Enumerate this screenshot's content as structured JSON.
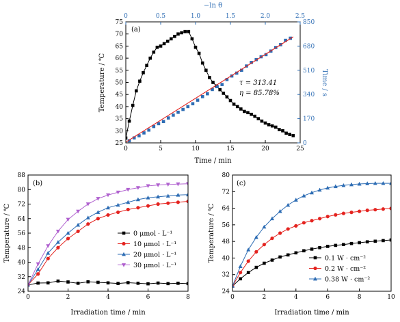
{
  "colors": {
    "black": "#000000",
    "red": "#e4231f",
    "blue": "#2e6db4",
    "purple": "#b061cf",
    "fit_line": "#e4231f",
    "right_axis": "#2e6db4"
  },
  "chart_data": [
    {
      "panel_label": "(a)",
      "type": "line",
      "xlabel": "Time / min",
      "ylabel": "Temperature / ℃",
      "x2label": "−ln θ",
      "y2label": "Time / s",
      "xlim": [
        0,
        25
      ],
      "ylim": [
        25,
        75
      ],
      "x2lim": [
        0,
        2.5
      ],
      "y2lim": [
        0,
        850
      ],
      "x_ticks": [
        "0",
        "5",
        "10",
        "15",
        "20",
        "25"
      ],
      "y_ticks": [
        "25",
        "30",
        "35",
        "40",
        "45",
        "50",
        "55",
        "60",
        "65",
        "70",
        "75"
      ],
      "x2_ticks": [
        "0",
        "0.5",
        "1.0",
        "1.5",
        "2.0",
        "2.5"
      ],
      "y2_ticks": [
        "0",
        "170",
        "340",
        "510",
        "680",
        "850"
      ],
      "annotations": [
        "τ = 313.41",
        "η = 85.78%"
      ],
      "series": [
        {
          "axis": "left-bottom",
          "marker": "square",
          "color": "#000000",
          "x": [
            0,
            0.5,
            1,
            1.5,
            2,
            2.5,
            3,
            3.5,
            4,
            4.5,
            5,
            5.5,
            6,
            6.5,
            7,
            7.5,
            8,
            8.5,
            9,
            9.5,
            10,
            10.5,
            11,
            11.5,
            12,
            12.5,
            13,
            13.5,
            14,
            14.5,
            15,
            15.5,
            16,
            16.5,
            17,
            17.5,
            18,
            18.5,
            19,
            19.5,
            20,
            20.5,
            21,
            21.5,
            22,
            22.5,
            23,
            23.5,
            24
          ],
          "y": [
            27,
            34,
            40.5,
            46.5,
            50.5,
            54,
            57,
            60,
            62.5,
            64.5,
            65,
            66,
            67,
            68,
            69,
            70,
            70.5,
            71,
            71,
            68,
            64.5,
            62,
            58,
            55,
            52,
            50,
            48.5,
            47,
            45.5,
            44,
            42.5,
            41,
            40,
            39,
            38,
            37.5,
            36.8,
            36,
            35,
            34,
            33.2,
            32.5,
            32,
            31.5,
            30.5,
            30,
            29,
            28.5,
            28
          ]
        },
        {
          "axis": "right-top",
          "marker": "square",
          "color": "#2e6db4",
          "x": [
            0.05,
            0.12,
            0.19,
            0.26,
            0.33,
            0.4,
            0.47,
            0.54,
            0.61,
            0.68,
            0.75,
            0.82,
            0.89,
            0.96,
            1.03,
            1.1,
            1.17,
            1.24,
            1.31,
            1.38,
            1.45,
            1.52,
            1.59,
            1.66,
            1.73,
            1.8,
            1.87,
            1.94,
            2.01,
            2.08,
            2.15,
            2.22,
            2.29,
            2.36
          ],
          "y": [
            15,
            35,
            50,
            70,
            90,
            115,
            135,
            150,
            175,
            195,
            215,
            235,
            255,
            275,
            300,
            325,
            345,
            375,
            395,
            410,
            445,
            470,
            490,
            510,
            540,
            565,
            585,
            605,
            620,
            645,
            670,
            690,
            720,
            735
          ]
        },
        {
          "axis": "right-top",
          "marker": "none",
          "color": "#e4231f",
          "x": [
            0,
            2.4
          ],
          "y": [
            5,
            745
          ]
        }
      ]
    },
    {
      "panel_label": "(b)",
      "type": "line",
      "xlabel": "Irradiation time / min",
      "ylabel": "Temperature / ℃",
      "xlim": [
        0,
        8
      ],
      "ylim": [
        24,
        88
      ],
      "x_ticks": [
        "0",
        "2",
        "4",
        "6",
        "8"
      ],
      "y_ticks": [
        "24",
        "32",
        "40",
        "48",
        "56",
        "64",
        "72",
        "80",
        "88"
      ],
      "x": [
        0,
        0.5,
        1,
        1.5,
        2,
        2.5,
        3,
        3.5,
        4,
        4.5,
        5,
        5.5,
        6,
        6.5,
        7,
        7.5,
        8
      ],
      "series": [
        {
          "name": "0 μmol · L⁻¹",
          "marker": "square",
          "color": "#000000",
          "values": [
            27.5,
            28.5,
            28.6,
            29.6,
            29.1,
            28.4,
            29.2,
            28.9,
            28.6,
            28.3,
            28.7,
            28.4,
            28.1,
            28.5,
            28.2,
            28.4,
            28.2
          ]
        },
        {
          "name": "10 μmol · L⁻¹",
          "marker": "circle",
          "color": "#e4231f",
          "values": [
            27.5,
            33.5,
            42,
            48,
            53,
            57,
            61,
            64,
            66,
            67.5,
            69,
            70,
            71,
            72,
            72.5,
            73,
            73.5
          ]
        },
        {
          "name": "20 μmol · L⁻¹",
          "marker": "triangle-up",
          "color": "#2e6db4",
          "values": [
            27.5,
            36,
            45,
            51,
            56,
            60.5,
            64.5,
            67.5,
            70,
            71.5,
            73,
            74.5,
            75.5,
            76,
            76.5,
            77,
            77.2
          ]
        },
        {
          "name": "30 μmol · L⁻¹",
          "marker": "triangle-down",
          "color": "#b061cf",
          "values": [
            27.5,
            39,
            49,
            57,
            63.5,
            68,
            72,
            75,
            77,
            78.5,
            80,
            81,
            82,
            82.5,
            82.8,
            83,
            83.2
          ]
        }
      ]
    },
    {
      "panel_label": "(c)",
      "type": "line",
      "xlabel": "Irradiation time / min",
      "ylabel": "Temperature / ℃",
      "xlim": [
        0,
        10
      ],
      "ylim": [
        24,
        80
      ],
      "x_ticks": [
        "0",
        "2",
        "4",
        "6",
        "8",
        "10"
      ],
      "y_ticks": [
        "24",
        "32",
        "40",
        "48",
        "56",
        "64",
        "72",
        "80"
      ],
      "x": [
        0,
        0.5,
        1,
        1.5,
        2,
        2.5,
        3,
        3.5,
        4,
        4.5,
        5,
        5.5,
        6,
        6.5,
        7,
        7.5,
        8,
        8.5,
        9,
        9.5,
        10
      ],
      "series": [
        {
          "name": "0.1 W · cm⁻²",
          "marker": "square",
          "color": "#000000",
          "values": [
            26.5,
            30,
            33,
            35.5,
            37.5,
            39,
            40.5,
            41.5,
            42.5,
            43.5,
            44.3,
            45,
            45.6,
            46.1,
            46.5,
            47,
            47.4,
            47.8,
            48.1,
            48.4,
            48.7
          ]
        },
        {
          "name": "0.2 W · cm⁻²",
          "marker": "circle",
          "color": "#e4231f",
          "values": [
            26.5,
            33,
            38.5,
            43,
            46.5,
            49.5,
            52,
            54,
            55.5,
            57,
            58,
            59,
            60,
            60.8,
            61.5,
            62,
            62.5,
            63,
            63.3,
            63.6,
            63.9
          ]
        },
        {
          "name": "0.38 W · cm⁻²",
          "marker": "triangle-up",
          "color": "#2e6db4",
          "values": [
            26.5,
            36,
            44,
            50,
            55,
            59,
            62.5,
            65.5,
            68,
            70,
            71.5,
            72.8,
            73.8,
            74.5,
            75,
            75.4,
            75.7,
            75.9,
            76,
            76,
            76
          ]
        }
      ]
    }
  ]
}
